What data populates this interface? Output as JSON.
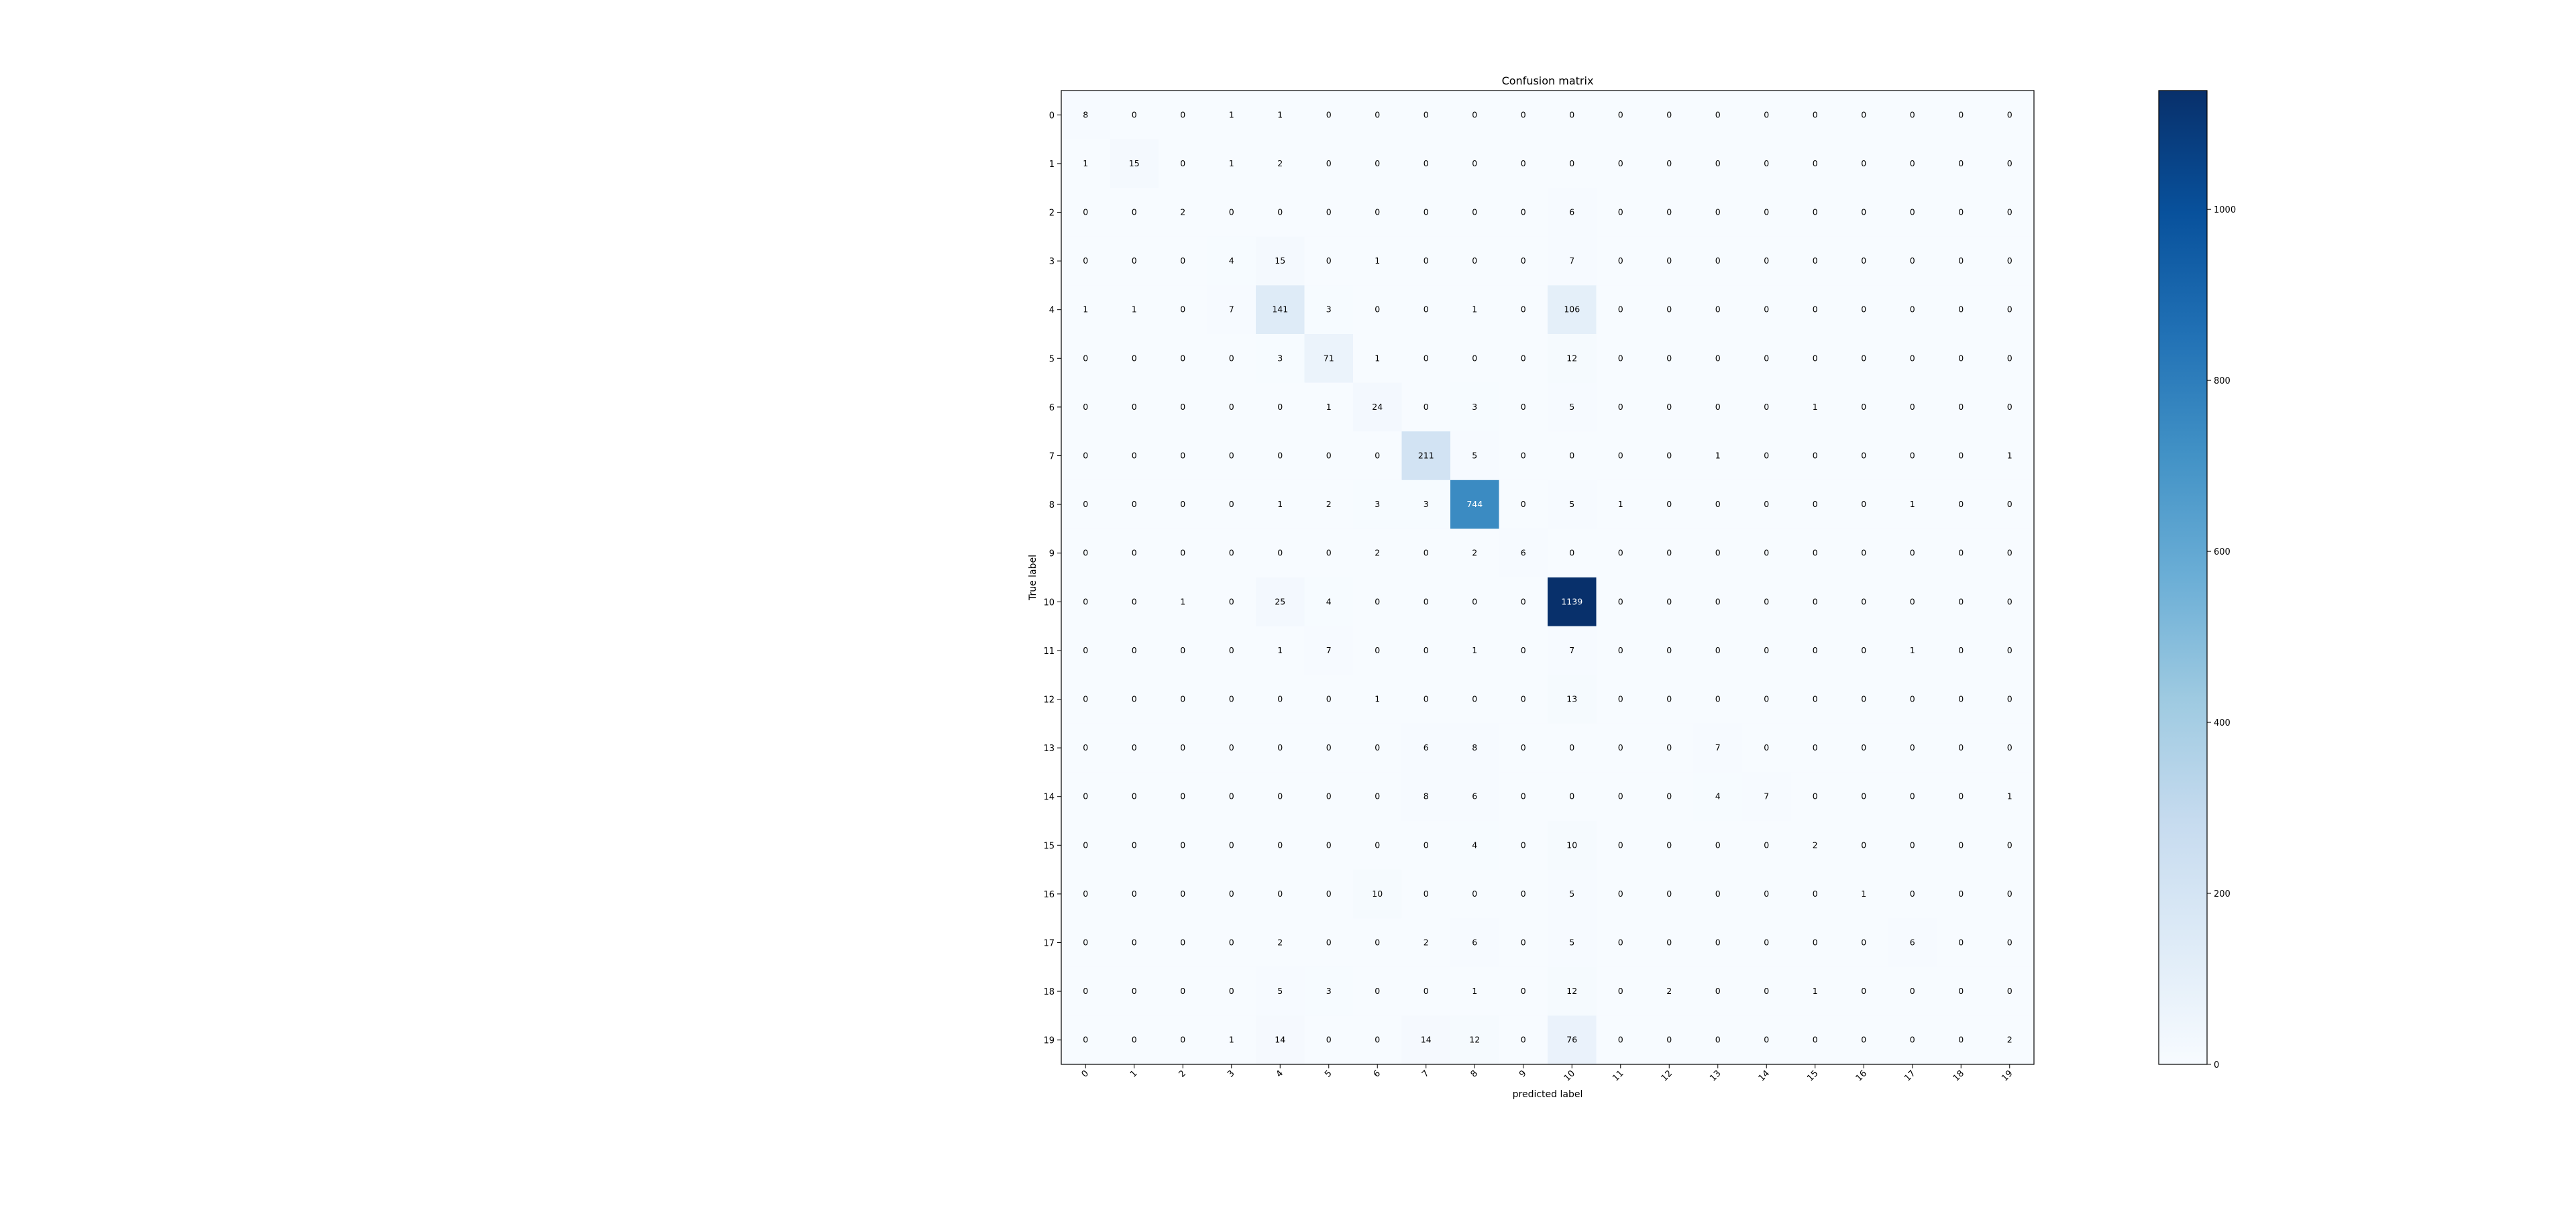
{
  "chart_data": {
    "type": "heatmap",
    "title": "Confusion matrix",
    "xlabel": "predicted label",
    "ylabel": "True label",
    "x_labels": [
      "0",
      "1",
      "2",
      "3",
      "4",
      "5",
      "6",
      "7",
      "8",
      "9",
      "10",
      "11",
      "12",
      "13",
      "14",
      "15",
      "16",
      "17",
      "18",
      "19"
    ],
    "y_labels": [
      "0",
      "1",
      "2",
      "3",
      "4",
      "5",
      "6",
      "7",
      "8",
      "9",
      "10",
      "11",
      "12",
      "13",
      "14",
      "15",
      "16",
      "17",
      "18",
      "19"
    ],
    "matrix": [
      [
        8,
        0,
        0,
        1,
        1,
        0,
        0,
        0,
        0,
        0,
        0,
        0,
        0,
        0,
        0,
        0,
        0,
        0,
        0,
        0
      ],
      [
        1,
        15,
        0,
        1,
        2,
        0,
        0,
        0,
        0,
        0,
        0,
        0,
        0,
        0,
        0,
        0,
        0,
        0,
        0,
        0
      ],
      [
        0,
        0,
        2,
        0,
        0,
        0,
        0,
        0,
        0,
        0,
        6,
        0,
        0,
        0,
        0,
        0,
        0,
        0,
        0,
        0
      ],
      [
        0,
        0,
        0,
        4,
        15,
        0,
        1,
        0,
        0,
        0,
        7,
        0,
        0,
        0,
        0,
        0,
        0,
        0,
        0,
        0
      ],
      [
        1,
        1,
        0,
        7,
        141,
        3,
        0,
        0,
        1,
        0,
        106,
        0,
        0,
        0,
        0,
        0,
        0,
        0,
        0,
        0
      ],
      [
        0,
        0,
        0,
        0,
        3,
        71,
        1,
        0,
        0,
        0,
        12,
        0,
        0,
        0,
        0,
        0,
        0,
        0,
        0,
        0
      ],
      [
        0,
        0,
        0,
        0,
        0,
        1,
        24,
        0,
        3,
        0,
        5,
        0,
        0,
        0,
        0,
        1,
        0,
        0,
        0,
        0
      ],
      [
        0,
        0,
        0,
        0,
        0,
        0,
        0,
        211,
        5,
        0,
        0,
        0,
        0,
        1,
        0,
        0,
        0,
        0,
        0,
        1
      ],
      [
        0,
        0,
        0,
        0,
        1,
        2,
        3,
        3,
        744,
        0,
        5,
        1,
        0,
        0,
        0,
        0,
        0,
        1,
        0,
        0
      ],
      [
        0,
        0,
        0,
        0,
        0,
        0,
        2,
        0,
        2,
        6,
        0,
        0,
        0,
        0,
        0,
        0,
        0,
        0,
        0,
        0
      ],
      [
        0,
        0,
        1,
        0,
        25,
        4,
        0,
        0,
        0,
        0,
        1139,
        0,
        0,
        0,
        0,
        0,
        0,
        0,
        0,
        0
      ],
      [
        0,
        0,
        0,
        0,
        1,
        7,
        0,
        0,
        1,
        0,
        7,
        0,
        0,
        0,
        0,
        0,
        0,
        1,
        0,
        0
      ],
      [
        0,
        0,
        0,
        0,
        0,
        0,
        1,
        0,
        0,
        0,
        13,
        0,
        0,
        0,
        0,
        0,
        0,
        0,
        0,
        0
      ],
      [
        0,
        0,
        0,
        0,
        0,
        0,
        0,
        6,
        8,
        0,
        0,
        0,
        0,
        7,
        0,
        0,
        0,
        0,
        0,
        0
      ],
      [
        0,
        0,
        0,
        0,
        0,
        0,
        0,
        8,
        6,
        0,
        0,
        0,
        0,
        4,
        7,
        0,
        0,
        0,
        0,
        1
      ],
      [
        0,
        0,
        0,
        0,
        0,
        0,
        0,
        0,
        4,
        0,
        10,
        0,
        0,
        0,
        0,
        2,
        0,
        0,
        0,
        0
      ],
      [
        0,
        0,
        0,
        0,
        0,
        0,
        10,
        0,
        0,
        0,
        5,
        0,
        0,
        0,
        0,
        0,
        1,
        0,
        0,
        0
      ],
      [
        0,
        0,
        0,
        0,
        2,
        0,
        0,
        2,
        6,
        0,
        5,
        0,
        0,
        0,
        0,
        0,
        0,
        6,
        0,
        0
      ],
      [
        0,
        0,
        0,
        0,
        5,
        3,
        0,
        0,
        1,
        0,
        12,
        0,
        2,
        0,
        0,
        1,
        0,
        0,
        0,
        0
      ],
      [
        0,
        0,
        0,
        1,
        14,
        0,
        0,
        14,
        12,
        0,
        76,
        0,
        0,
        0,
        0,
        0,
        0,
        0,
        0,
        2
      ]
    ],
    "value_range": [
      0,
      1139
    ],
    "colormap": "Blues",
    "colors": {
      "low": "#f7fbff",
      "high": "#08306b"
    },
    "colorbar_ticks": [
      0,
      200,
      400,
      600,
      800,
      1000
    ],
    "grid": false,
    "colorbar_position": "right"
  }
}
